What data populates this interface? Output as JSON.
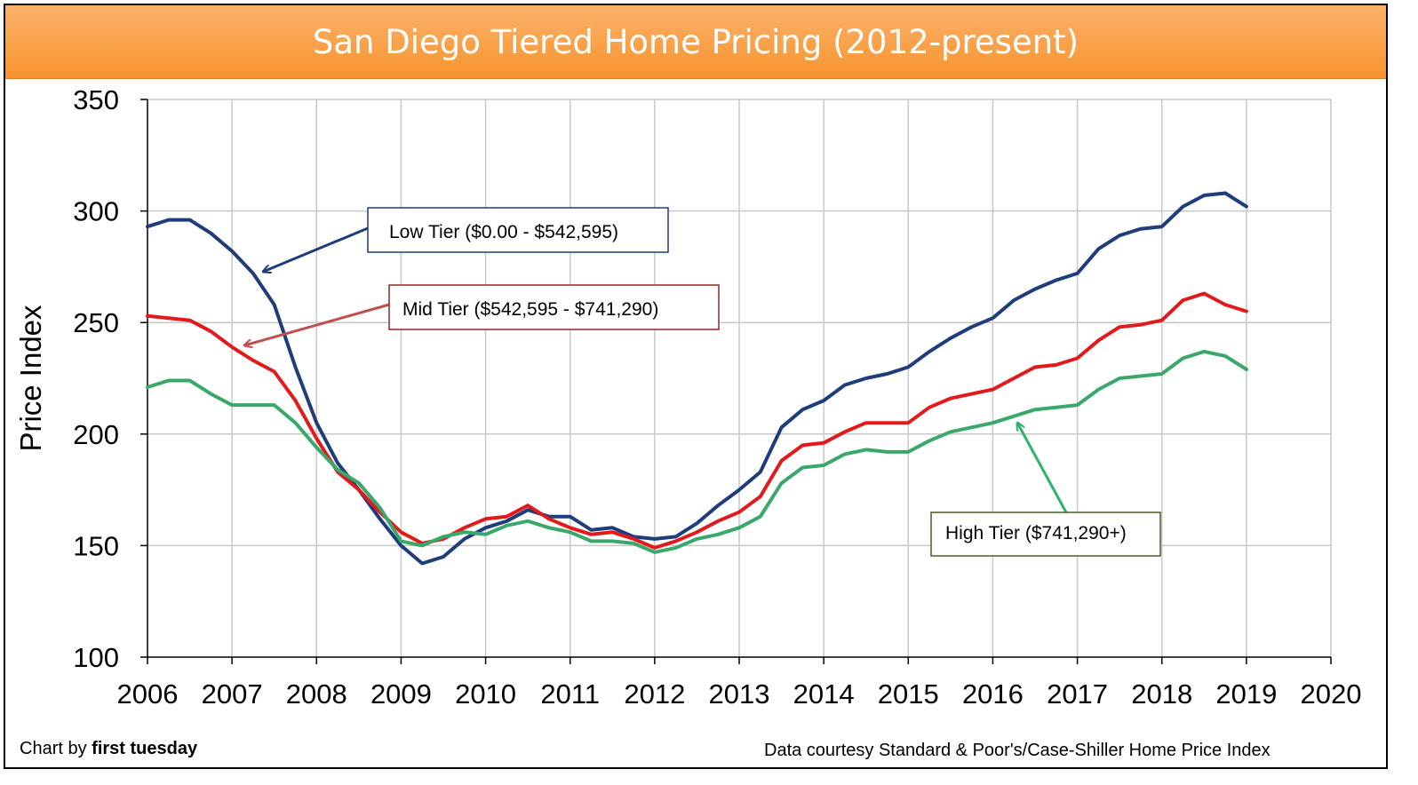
{
  "title": "San Diego Tiered Home Pricing (2012-present)",
  "footer_left_prefix": "Chart by ",
  "footer_left_brand": "first tuesday",
  "footer_right": "Data courtesy Standard & Poor's/Case-Shiller Home Price Index",
  "chart_data": {
    "type": "line",
    "title": "San Diego Tiered Home Pricing (2012-present)",
    "xlabel": "",
    "ylabel": "Price Index",
    "xlim": [
      2006,
      2020
    ],
    "ylim": [
      100,
      350
    ],
    "xticks": [
      2006,
      2007,
      2008,
      2009,
      2010,
      2011,
      2012,
      2013,
      2014,
      2015,
      2016,
      2017,
      2018,
      2019,
      2020
    ],
    "yticks": [
      100,
      150,
      200,
      250,
      300,
      350
    ],
    "grid": true,
    "series": [
      {
        "name": "Low Tier ($0.00 - $542,595)",
        "color": "#1f3d7a",
        "points": [
          [
            2006.0,
            293
          ],
          [
            2006.25,
            296
          ],
          [
            2006.5,
            296
          ],
          [
            2006.75,
            290
          ],
          [
            2007.0,
            282
          ],
          [
            2007.25,
            272
          ],
          [
            2007.5,
            258
          ],
          [
            2007.75,
            230
          ],
          [
            2008.0,
            205
          ],
          [
            2008.25,
            187
          ],
          [
            2008.5,
            175
          ],
          [
            2008.75,
            162
          ],
          [
            2009.0,
            150
          ],
          [
            2009.25,
            142
          ],
          [
            2009.5,
            145
          ],
          [
            2009.75,
            153
          ],
          [
            2010.0,
            158
          ],
          [
            2010.25,
            161
          ],
          [
            2010.5,
            166
          ],
          [
            2010.75,
            163
          ],
          [
            2011.0,
            163
          ],
          [
            2011.25,
            157
          ],
          [
            2011.5,
            158
          ],
          [
            2011.75,
            154
          ],
          [
            2012.0,
            153
          ],
          [
            2012.25,
            154
          ],
          [
            2012.5,
            160
          ],
          [
            2012.75,
            168
          ],
          [
            2013.0,
            175
          ],
          [
            2013.25,
            183
          ],
          [
            2013.5,
            203
          ],
          [
            2013.75,
            211
          ],
          [
            2014.0,
            215
          ],
          [
            2014.25,
            222
          ],
          [
            2014.5,
            225
          ],
          [
            2014.75,
            227
          ],
          [
            2015.0,
            230
          ],
          [
            2015.25,
            237
          ],
          [
            2015.5,
            243
          ],
          [
            2015.75,
            248
          ],
          [
            2016.0,
            252
          ],
          [
            2016.25,
            260
          ],
          [
            2016.5,
            265
          ],
          [
            2016.75,
            269
          ],
          [
            2017.0,
            272
          ],
          [
            2017.25,
            283
          ],
          [
            2017.5,
            289
          ],
          [
            2017.75,
            292
          ],
          [
            2018.0,
            293
          ],
          [
            2018.25,
            302
          ],
          [
            2018.5,
            307
          ],
          [
            2018.75,
            308
          ],
          [
            2019.0,
            302
          ]
        ]
      },
      {
        "name": "Mid Tier ($542,595 - $741,290)",
        "color": "#e31a1c",
        "points": [
          [
            2006.0,
            253
          ],
          [
            2006.25,
            252
          ],
          [
            2006.5,
            251
          ],
          [
            2006.75,
            246
          ],
          [
            2007.0,
            239
          ],
          [
            2007.25,
            233
          ],
          [
            2007.5,
            228
          ],
          [
            2007.75,
            215
          ],
          [
            2008.0,
            198
          ],
          [
            2008.25,
            183
          ],
          [
            2008.5,
            175
          ],
          [
            2008.75,
            165
          ],
          [
            2009.0,
            156
          ],
          [
            2009.25,
            151
          ],
          [
            2009.5,
            153
          ],
          [
            2009.75,
            158
          ],
          [
            2010.0,
            162
          ],
          [
            2010.25,
            163
          ],
          [
            2010.5,
            168
          ],
          [
            2010.75,
            162
          ],
          [
            2011.0,
            158
          ],
          [
            2011.25,
            155
          ],
          [
            2011.5,
            156
          ],
          [
            2011.75,
            153
          ],
          [
            2012.0,
            149
          ],
          [
            2012.25,
            152
          ],
          [
            2012.5,
            156
          ],
          [
            2012.75,
            161
          ],
          [
            2013.0,
            165
          ],
          [
            2013.25,
            172
          ],
          [
            2013.5,
            188
          ],
          [
            2013.75,
            195
          ],
          [
            2014.0,
            196
          ],
          [
            2014.25,
            201
          ],
          [
            2014.5,
            205
          ],
          [
            2014.75,
            205
          ],
          [
            2015.0,
            205
          ],
          [
            2015.25,
            212
          ],
          [
            2015.5,
            216
          ],
          [
            2015.75,
            218
          ],
          [
            2016.0,
            220
          ],
          [
            2016.25,
            225
          ],
          [
            2016.5,
            230
          ],
          [
            2016.75,
            231
          ],
          [
            2017.0,
            234
          ],
          [
            2017.25,
            242
          ],
          [
            2017.5,
            248
          ],
          [
            2017.75,
            249
          ],
          [
            2018.0,
            251
          ],
          [
            2018.25,
            260
          ],
          [
            2018.5,
            263
          ],
          [
            2018.75,
            258
          ],
          [
            2019.0,
            255
          ]
        ]
      },
      {
        "name": "High Tier ($741,290+)",
        "color": "#3aa86b",
        "points": [
          [
            2006.0,
            221
          ],
          [
            2006.25,
            224
          ],
          [
            2006.5,
            224
          ],
          [
            2006.75,
            218
          ],
          [
            2007.0,
            213
          ],
          [
            2007.25,
            213
          ],
          [
            2007.5,
            213
          ],
          [
            2007.75,
            205
          ],
          [
            2008.0,
            194
          ],
          [
            2008.25,
            184
          ],
          [
            2008.5,
            178
          ],
          [
            2008.75,
            167
          ],
          [
            2009.0,
            152
          ],
          [
            2009.25,
            150
          ],
          [
            2009.5,
            154
          ],
          [
            2009.75,
            156
          ],
          [
            2010.0,
            155
          ],
          [
            2010.25,
            159
          ],
          [
            2010.5,
            161
          ],
          [
            2010.75,
            158
          ],
          [
            2011.0,
            156
          ],
          [
            2011.25,
            152
          ],
          [
            2011.5,
            152
          ],
          [
            2011.75,
            151
          ],
          [
            2012.0,
            147
          ],
          [
            2012.25,
            149
          ],
          [
            2012.5,
            153
          ],
          [
            2012.75,
            155
          ],
          [
            2013.0,
            158
          ],
          [
            2013.25,
            163
          ],
          [
            2013.5,
            178
          ],
          [
            2013.75,
            185
          ],
          [
            2014.0,
            186
          ],
          [
            2014.25,
            191
          ],
          [
            2014.5,
            193
          ],
          [
            2014.75,
            192
          ],
          [
            2015.0,
            192
          ],
          [
            2015.25,
            197
          ],
          [
            2015.5,
            201
          ],
          [
            2015.75,
            203
          ],
          [
            2016.0,
            205
          ],
          [
            2016.25,
            208
          ],
          [
            2016.5,
            211
          ],
          [
            2016.75,
            212
          ],
          [
            2017.0,
            213
          ],
          [
            2017.25,
            220
          ],
          [
            2017.5,
            225
          ],
          [
            2017.75,
            226
          ],
          [
            2018.0,
            227
          ],
          [
            2018.25,
            234
          ],
          [
            2018.5,
            237
          ],
          [
            2018.75,
            235
          ],
          [
            2019.0,
            229
          ]
        ]
      }
    ],
    "annotations": [
      {
        "text": "Low Tier ($0.00 - $542,595)",
        "series": 0,
        "border_color": "#1f3d7a",
        "arrow_color": "#1f3d7a"
      },
      {
        "text": "Mid Tier ($542,595 - $741,290)",
        "series": 1,
        "border_color": "#9b2226",
        "arrow_color": "#c0504d"
      },
      {
        "text": "High Tier ($741,290+)",
        "series": 2,
        "border_color": "#4a5e23",
        "arrow_color": "#2db36b"
      }
    ]
  }
}
